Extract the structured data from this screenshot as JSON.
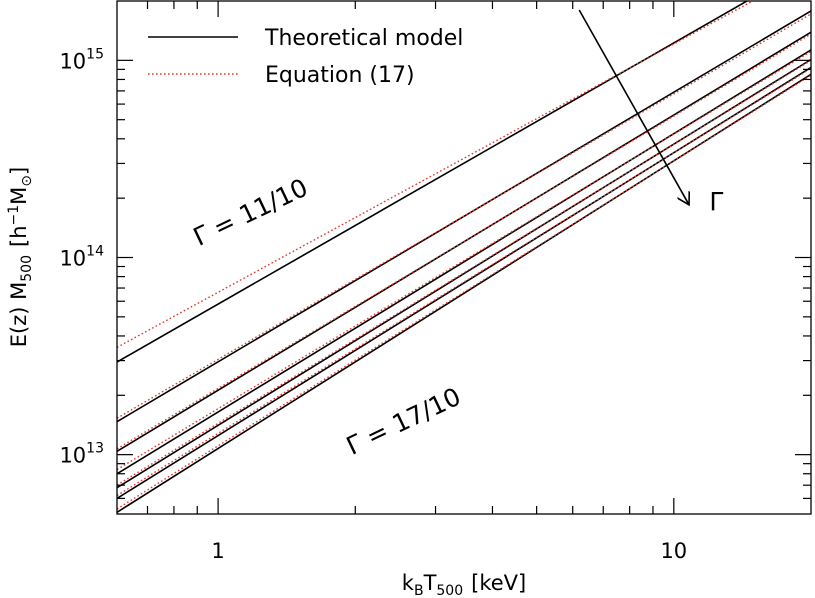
{
  "chart_data": {
    "type": "line",
    "xlabel_main": "k",
    "xlabel_sub1": "B",
    "xlabel_mid": "T",
    "xlabel_sub2": "500",
    "xlabel_unit": "[keV]",
    "ylabel_main": "E(z) M",
    "ylabel_sub": "500",
    "ylabel_unit_pre": "[h",
    "ylabel_unit_sup": "−1",
    "ylabel_unit_m": "M",
    "ylabel_unit_sun": "⊙",
    "ylabel_unit_post": "]",
    "x_scale": "log",
    "y_scale": "log",
    "xlim": [
      0.6,
      20
    ],
    "ylim": [
      5000000000000.0,
      2000000000000000.0
    ],
    "x_major_ticks": [
      {
        "value": 1,
        "label": "1"
      },
      {
        "value": 10,
        "label": "10"
      }
    ],
    "y_major_ticks": [
      {
        "value": 10000000000000.0,
        "base": "10",
        "exp": "13"
      },
      {
        "value": 100000000000000.0,
        "base": "10",
        "exp": "14"
      },
      {
        "value": 1000000000000000.0,
        "base": "10",
        "exp": "15"
      }
    ],
    "legend": {
      "position": "top-left",
      "entries": [
        {
          "label": "Theoretical model",
          "color": "#000000",
          "style": "solid"
        },
        {
          "label": "Equation (17)",
          "color": "#e0392b",
          "style": "dotted"
        }
      ]
    },
    "series": [
      {
        "model": {
          "x": [
            0.6,
            20
          ],
          "y": [
            29500000000000.0,
            3070000000000000.0
          ]
        },
        "eq17": {
          "x": [
            0.6,
            20
          ],
          "y": [
            35000000000000.0,
            2900000000000000.0
          ]
        }
      },
      {
        "model": {
          "x": [
            0.6,
            20
          ],
          "y": [
            14700000000000.0,
            1780000000000000.0
          ]
        },
        "eq17": {
          "x": [
            0.6,
            20
          ],
          "y": [
            15300000000000.0,
            1720000000000000.0
          ]
        }
      },
      {
        "model": {
          "x": [
            0.6,
            20
          ],
          "y": [
            10400000000000.0,
            1390000000000000.0
          ]
        },
        "eq17": {
          "x": [
            0.6,
            20
          ],
          "y": [
            10700000000000.0,
            1360000000000000.0
          ]
        }
      },
      {
        "model": {
          "x": [
            0.6,
            20
          ],
          "y": [
            8000000000000.0,
            1130000000000000.0
          ]
        },
        "eq17": {
          "x": [
            0.6,
            20
          ],
          "y": [
            8400000000000.0,
            1110000000000000.0
          ]
        }
      },
      {
        "model": {
          "x": [
            0.6,
            20
          ],
          "y": [
            6800000000000.0,
            1010000000000000.0
          ]
        },
        "eq17": {
          "x": [
            0.6,
            20
          ],
          "y": [
            7000000000000.0,
            1000000000000000.0
          ]
        }
      },
      {
        "model": {
          "x": [
            0.6,
            20
          ],
          "y": [
            6000000000000.0,
            920000000000000.0
          ]
        },
        "eq17": {
          "x": [
            0.6,
            20
          ],
          "y": [
            6200000000000.0,
            910000000000000.0
          ]
        }
      },
      {
        "model": {
          "x": [
            0.6,
            20
          ],
          "y": [
            5100000000000.0,
            850000000000000.0
          ]
        },
        "eq17": {
          "x": [
            0.6,
            20
          ],
          "y": [
            5300000000000.0,
            840000000000000.0
          ]
        }
      }
    ],
    "annotations": [
      {
        "text": "Γ = 11/10",
        "x": 1.2,
        "y": 155000000000000.0,
        "angle": -25.5
      },
      {
        "text": "Γ = 17/10",
        "x": 2.6,
        "y": 13500000000000.0,
        "angle": -25.5
      },
      {
        "text": "Γ",
        "x": 12.4,
        "y": 174000000000000.0,
        "angle": 0
      }
    ],
    "arrow": {
      "from": {
        "x": 6.2,
        "y": 1800000000000000.0
      },
      "to": {
        "x": 10.8,
        "y": 185000000000000.0
      }
    }
  }
}
